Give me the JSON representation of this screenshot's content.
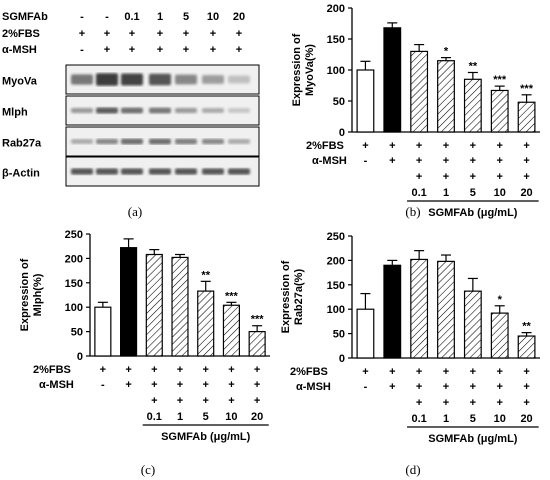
{
  "colors": {
    "ctrl": "#ffffff",
    "msh": "#000000",
    "stroke": "#000000",
    "blot_bg": "#f0f0f0",
    "band": "#2a2a2a"
  },
  "panel_a": {
    "caption": "(a)",
    "treatment_rows": [
      {
        "label": "SGMFAb",
        "values": [
          "-",
          "-",
          "0.1",
          "1",
          "5",
          "10",
          "20"
        ]
      },
      {
        "label": "2%FBS",
        "values": [
          "+",
          "+",
          "+",
          "+",
          "+",
          "+",
          "+"
        ]
      },
      {
        "label": "α-MSH",
        "values": [
          "-",
          "+",
          "+",
          "+",
          "+",
          "+",
          "+"
        ]
      }
    ],
    "blots": [
      {
        "label": "MyoVa",
        "intensity": [
          0.55,
          0.9,
          0.85,
          0.75,
          0.45,
          0.3,
          0.12
        ]
      },
      {
        "label": "Mlph",
        "intensity": [
          0.35,
          0.7,
          0.6,
          0.55,
          0.35,
          0.25,
          0.1
        ]
      },
      {
        "label": "Rab27a",
        "intensity": [
          0.25,
          0.45,
          0.6,
          0.6,
          0.5,
          0.45,
          0.25
        ]
      },
      {
        "label": "β-Actin",
        "intensity": [
          0.75,
          0.75,
          0.75,
          0.75,
          0.75,
          0.75,
          0.75
        ]
      }
    ]
  },
  "chart_data": [
    {
      "type": "bar",
      "caption": "(b)",
      "ylabel": "Expression of MyoVa(%)",
      "ylabel_lines": [
        "Expression of",
        "MyoVa(%)"
      ],
      "ylim": [
        0,
        200
      ],
      "yticks": [
        0,
        50,
        100,
        150,
        200
      ],
      "values": [
        100,
        168,
        130,
        115,
        85,
        67,
        48
      ],
      "errors": [
        14,
        8,
        11,
        5,
        11,
        7,
        12
      ],
      "sig": [
        "",
        "",
        "",
        "*",
        "**",
        "***",
        "***"
      ],
      "fbs_label": "2%FBS",
      "fbs": [
        "+",
        "+",
        "+",
        "+",
        "+",
        "+",
        "+"
      ],
      "msh_label": "α-MSH",
      "msh": [
        "-",
        "+",
        "+",
        "+",
        "+",
        "+",
        "+"
      ],
      "doses": [
        "0.1",
        "1",
        "5",
        "10",
        "20"
      ],
      "dose_title": "SGMFAb (μg/mL)"
    },
    {
      "type": "bar",
      "caption": "(c)",
      "ylabel": "Expression of Mlph(%)",
      "ylabel_lines": [
        "Expression of",
        "Mlph(%)"
      ],
      "ylim": [
        0,
        250
      ],
      "yticks": [
        0,
        50,
        100,
        150,
        200,
        250
      ],
      "values": [
        100,
        222,
        208,
        202,
        133,
        104,
        50
      ],
      "errors": [
        10,
        18,
        10,
        6,
        20,
        6,
        12
      ],
      "sig": [
        "",
        "",
        "",
        "",
        "**",
        "***",
        "***"
      ],
      "fbs_label": "2%FBS",
      "fbs": [
        "+",
        "+",
        "+",
        "+",
        "+",
        "+",
        "+"
      ],
      "msh_label": "α-MSH",
      "msh": [
        "-",
        "+",
        "+",
        "+",
        "+",
        "+",
        "+"
      ],
      "doses": [
        "0.1",
        "1",
        "5",
        "10",
        "20"
      ],
      "dose_title": "SGMFAb (μg/mL)"
    },
    {
      "type": "bar",
      "caption": "(d)",
      "ylabel": "Expression of Rab27a(%)",
      "ylabel_lines": [
        "Expression of",
        "Rab27a(%)"
      ],
      "ylim": [
        0,
        250
      ],
      "yticks": [
        0,
        50,
        100,
        150,
        200,
        250
      ],
      "values": [
        100,
        190,
        202,
        198,
        137,
        92,
        45
      ],
      "errors": [
        32,
        10,
        18,
        13,
        26,
        15,
        7
      ],
      "sig": [
        "",
        "",
        "",
        "",
        "",
        "*",
        "**"
      ],
      "fbs_label": "2%FBS",
      "fbs": [
        "+",
        "+",
        "+",
        "+",
        "+",
        "+",
        "+"
      ],
      "msh_label": "α-MSH",
      "msh": [
        "-",
        "+",
        "+",
        "+",
        "+",
        "+",
        "+"
      ],
      "doses": [
        "0.1",
        "1",
        "5",
        "10",
        "20"
      ],
      "dose_title": "SGMFAb (μg/mL)"
    }
  ]
}
